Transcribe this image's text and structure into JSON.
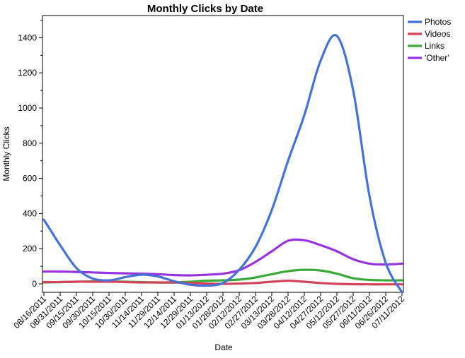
{
  "chart_data": {
    "type": "line",
    "title": "Monthly Clicks by Date",
    "xlabel": "Date",
    "ylabel": "Monthly Clicks",
    "ylim": [
      -60,
      1530
    ],
    "yticks": [
      0,
      200,
      400,
      600,
      800,
      1000,
      1200,
      1400
    ],
    "grid": false,
    "legend_position": "top-right-outside",
    "categories": [
      "08/16/2011",
      "08/31/2011",
      "09/15/2011",
      "09/30/2011",
      "10/15/2011",
      "10/30/2011",
      "11/14/2011",
      "11/29/2011",
      "12/14/2011",
      "12/29/2011",
      "01/13/2012",
      "01/28/2012",
      "02/12/2012",
      "02/27/2012",
      "03/13/2012",
      "03/28/2012",
      "04/12/2012",
      "04/27/2012",
      "05/12/2012",
      "05/27/2012",
      "06/11/2012",
      "06/26/2012",
      "07/11/2012"
    ],
    "series": [
      {
        "name": "Photos",
        "color": "#4472d6",
        "values": [
          365,
          220,
          90,
          30,
          20,
          38,
          52,
          42,
          15,
          -5,
          -10,
          5,
          80,
          210,
          420,
          700,
          960,
          1270,
          1410,
          1100,
          500,
          120,
          -60
        ]
      },
      {
        "name": "Videos",
        "color": "#d0455a",
        "values": [
          10,
          10,
          12,
          12,
          12,
          10,
          8,
          8,
          8,
          5,
          2,
          0,
          2,
          5,
          12,
          18,
          12,
          5,
          0,
          -2,
          -3,
          -3,
          -3
        ]
      },
      {
        "name": "Links",
        "color": "#3aaa3a",
        "values": [
          8,
          10,
          12,
          14,
          14,
          12,
          10,
          8,
          8,
          12,
          18,
          20,
          24,
          36,
          55,
          72,
          80,
          76,
          58,
          32,
          22,
          20,
          20
        ]
      },
      {
        "name": "'Other'",
        "color": "#9933dd",
        "values": [
          70,
          70,
          68,
          65,
          62,
          60,
          58,
          55,
          50,
          48,
          52,
          58,
          78,
          125,
          185,
          245,
          248,
          220,
          185,
          140,
          115,
          110,
          115
        ]
      }
    ]
  }
}
